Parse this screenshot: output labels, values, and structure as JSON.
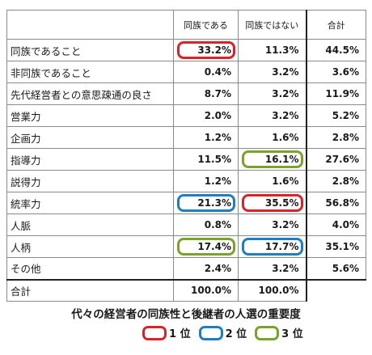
{
  "header": {
    "col1": "同族である",
    "col2": "同族ではない",
    "col3": "合計"
  },
  "rows": [
    {
      "label": "同族であること",
      "v1": "33.2%",
      "v2": "11.3%",
      "v3": "44.5%"
    },
    {
      "label": "非同族であること",
      "v1": "0.4%",
      "v2": "3.2%",
      "v3": "3.6%"
    },
    {
      "label": "先代経営者との意思疎通の良さ",
      "v1": "8.7%",
      "v2": "3.2%",
      "v3": "11.9%"
    },
    {
      "label": "営業力",
      "v1": "2.0%",
      "v2": "3.2%",
      "v3": "5.2%"
    },
    {
      "label": "企画力",
      "v1": "1.2%",
      "v2": "1.6%",
      "v3": "2.8%"
    },
    {
      "label": "指導力",
      "v1": "11.5%",
      "v2": "16.1%",
      "v3": "27.6%"
    },
    {
      "label": "説得力",
      "v1": "1.2%",
      "v2": "1.6%",
      "v3": "2.8%"
    },
    {
      "label": "統率力",
      "v1": "21.3%",
      "v2": "35.5%",
      "v3": "56.8%"
    },
    {
      "label": "人脈",
      "v1": "0.8%",
      "v2": "3.2%",
      "v3": "4.0%"
    },
    {
      "label": "人柄",
      "v1": "17.4%",
      "v2": "17.7%",
      "v3": "35.1%"
    },
    {
      "label": "その他",
      "v1": "2.4%",
      "v2": "3.2%",
      "v3": "5.6%"
    }
  ],
  "total": {
    "label": "合計",
    "v1": "100.0%",
    "v2": "100.0%"
  },
  "caption": "代々の経営者の同族性と後継者の人選の重要度",
  "legend": [
    {
      "label": "1 位",
      "color": "#d8232a"
    },
    {
      "label": "2 位",
      "color": "#1f7ec2"
    },
    {
      "label": "3 位",
      "color": "#7aa32c"
    }
  ]
}
